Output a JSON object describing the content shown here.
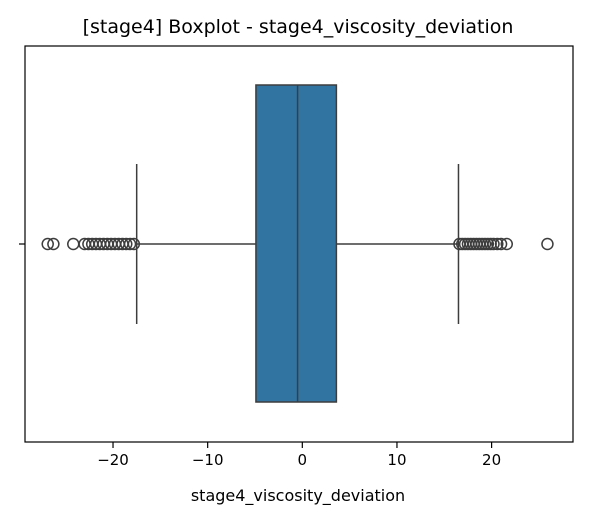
{
  "chart_data": {
    "type": "boxplot",
    "title": "[stage4] Boxplot - stage4_viscosity_deviation",
    "xlabel": "stage4_viscosity_deviation",
    "ylabel": "",
    "xlim": [
      -29.3,
      28.6
    ],
    "xticks": [
      -20,
      -10,
      0,
      10,
      20
    ],
    "xtick_labels": [
      "−20",
      "−10",
      "0",
      "10",
      "20"
    ],
    "box": {
      "whisker_low": -17.5,
      "q1": -4.9,
      "median": -0.5,
      "q3": 3.6,
      "whisker_high": 16.5
    },
    "outliers": [
      -26.9,
      -26.3,
      -24.2,
      -23.0,
      -22.6,
      -22.2,
      -21.8,
      -21.4,
      -21.0,
      -20.6,
      -20.2,
      -19.8,
      -19.4,
      -19.0,
      -18.6,
      -18.2,
      -17.8,
      16.6,
      16.9,
      17.2,
      17.5,
      17.8,
      18.1,
      18.4,
      18.7,
      19.0,
      19.3,
      19.6,
      19.9,
      20.2,
      20.6,
      21.0,
      21.6,
      25.9
    ],
    "grid": false,
    "box_color": "#3274a1",
    "edge_color": "#3d3d3d"
  }
}
